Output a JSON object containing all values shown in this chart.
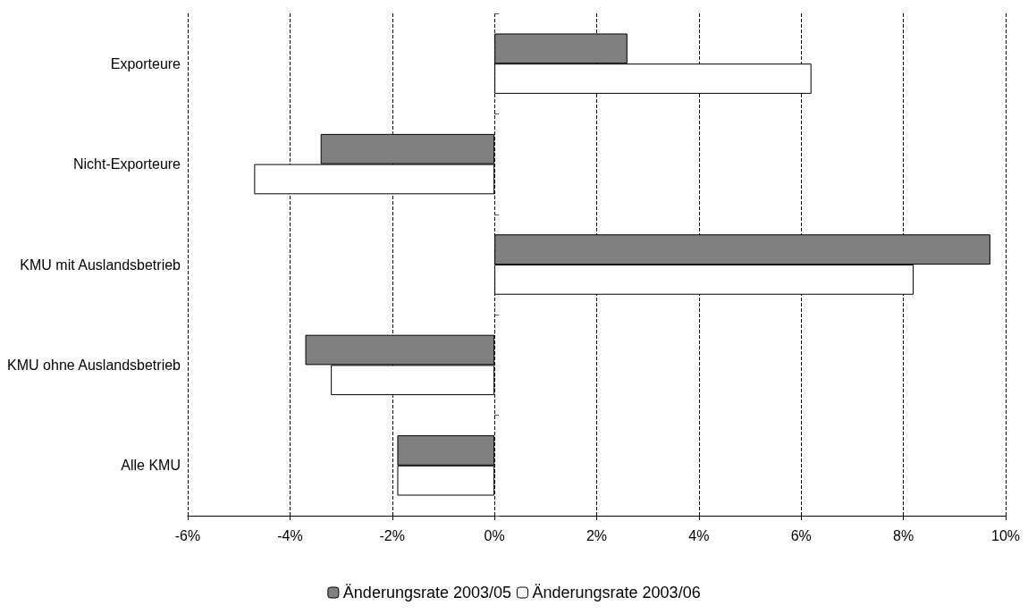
{
  "chart_data": {
    "type": "bar",
    "orientation": "horizontal",
    "categories": [
      "Exporteure",
      "Nicht-Exporteure",
      "KMU mit Auslandsbetrieb",
      "KMU ohne Auslandsbetrieb",
      "Alle KMU"
    ],
    "series": [
      {
        "name": "Änderungsrate 2003/05",
        "color": "#808080",
        "values": [
          2.6,
          -3.4,
          9.7,
          -3.7,
          -1.9
        ]
      },
      {
        "name": "Änderungsrate 2003/06",
        "color": "#ffffff",
        "values": [
          6.2,
          -4.7,
          8.2,
          -3.2,
          -1.9
        ]
      }
    ],
    "xlim": [
      -6,
      10
    ],
    "xticks": [
      {
        "value": -6,
        "label": "-6%"
      },
      {
        "value": -4,
        "label": "-4%"
      },
      {
        "value": -2,
        "label": "-2%"
      },
      {
        "value": 0,
        "label": "0%"
      },
      {
        "value": 2,
        "label": "2%"
      },
      {
        "value": 4,
        "label": "4%"
      },
      {
        "value": 6,
        "label": "6%"
      },
      {
        "value": 8,
        "label": "8%"
      },
      {
        "value": 10,
        "label": "10%"
      }
    ],
    "grid": "x",
    "legend": "bottom"
  }
}
